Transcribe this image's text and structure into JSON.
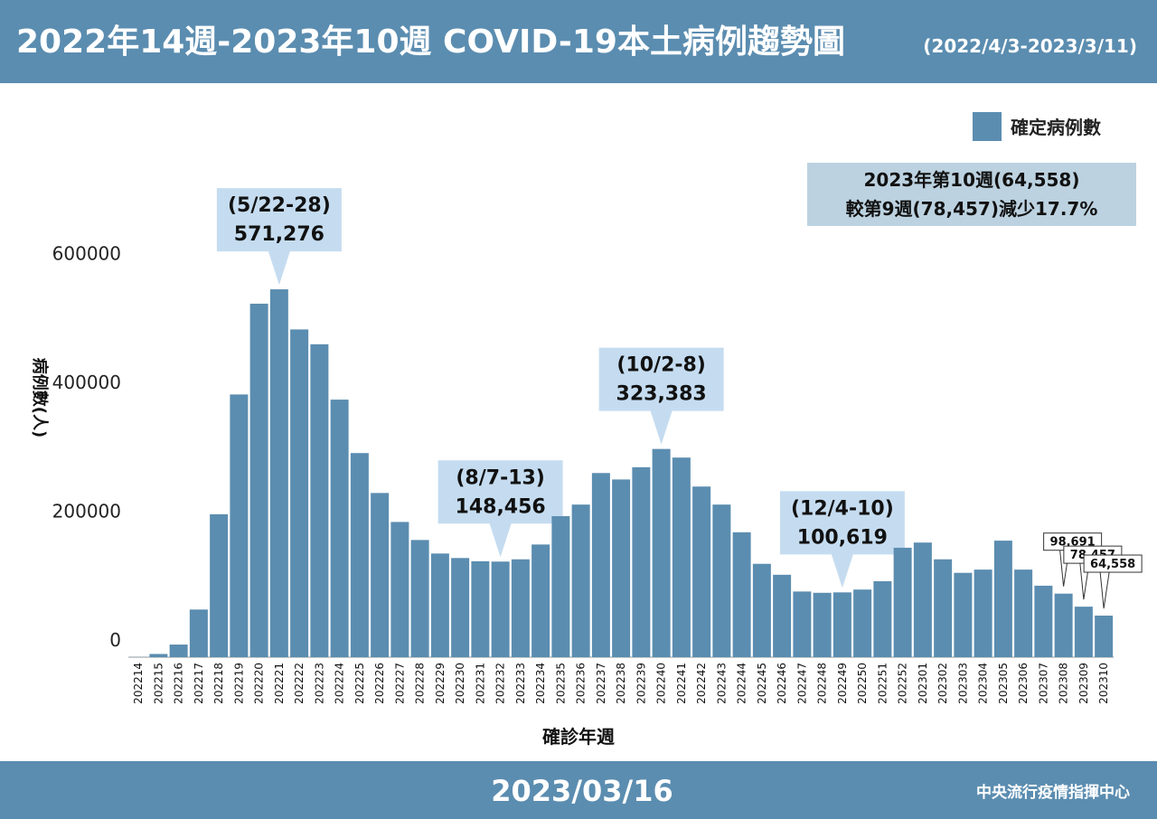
{
  "chart_data": {
    "type": "bar",
    "title": "2022年14週-2023年10週 COVID-19本土病例趨勢圖",
    "subtitle": "(2022/4/3-2023/3/11)",
    "xlabel": "確診年週",
    "ylabel": "病例數(人)",
    "legend": "確定病例數",
    "color": "#5b8db0",
    "note": [
      "2023年第10週(64,558)",
      "較第9週(78,457)減少17.7%"
    ],
    "footer_date": "2023/03/16",
    "source": "中央流行疫情指揮中心",
    "categories": [
      "202214",
      "202215",
      "202216",
      "202217",
      "202218",
      "202219",
      "202220",
      "202221",
      "202222",
      "202223",
      "202224",
      "202225",
      "202226",
      "202227",
      "202228",
      "202229",
      "202230",
      "202231",
      "202232",
      "202233",
      "202234",
      "202235",
      "202236",
      "202237",
      "202238",
      "202239",
      "202240",
      "202241",
      "202242",
      "202243",
      "202244",
      "202245",
      "202246",
      "202247",
      "202248",
      "202249",
      "202250",
      "202251",
      "202252",
      "202301",
      "202302",
      "202303",
      "202304",
      "202305",
      "202306",
      "202307",
      "202308",
      "202309",
      "202310"
    ],
    "values": [
      300,
      5000,
      19600,
      74000,
      222000,
      408000,
      549000,
      571276,
      509000,
      486000,
      400000,
      317000,
      255000,
      210000,
      182000,
      161000,
      154000,
      149000,
      148456,
      152000,
      175000,
      219000,
      237000,
      286000,
      276000,
      295000,
      323383,
      310000,
      265000,
      237000,
      194000,
      145000,
      128000,
      102000,
      100000,
      100619,
      105000,
      118000,
      170000,
      178000,
      152000,
      131000,
      136000,
      181000,
      136000,
      111000,
      98691,
      78457,
      64558
    ],
    "value_labels": [
      null,
      null,
      null,
      null,
      null,
      null,
      null,
      "571,276",
      null,
      null,
      null,
      null,
      null,
      null,
      null,
      null,
      null,
      null,
      "148,456",
      null,
      null,
      null,
      null,
      null,
      null,
      null,
      "323,383",
      null,
      null,
      null,
      null,
      null,
      null,
      null,
      null,
      "100,619",
      null,
      null,
      null,
      null,
      null,
      null,
      null,
      null,
      null,
      null,
      "98,691",
      "78,457",
      "64,558"
    ],
    "callout_titles": [
      null,
      null,
      null,
      null,
      null,
      null,
      null,
      "(5/22-28)",
      null,
      null,
      null,
      null,
      null,
      null,
      null,
      null,
      null,
      null,
      "(8/7-13)",
      null,
      null,
      null,
      null,
      null,
      null,
      null,
      "(10/2-8)",
      null,
      null,
      null,
      null,
      null,
      null,
      null,
      null,
      "(12/4-10)",
      null,
      null,
      null,
      null,
      null,
      null,
      null,
      null,
      null,
      null,
      null,
      null,
      null
    ],
    "ylim": [
      0,
      650000
    ],
    "yticks": [
      0,
      200000,
      400000,
      600000
    ]
  }
}
